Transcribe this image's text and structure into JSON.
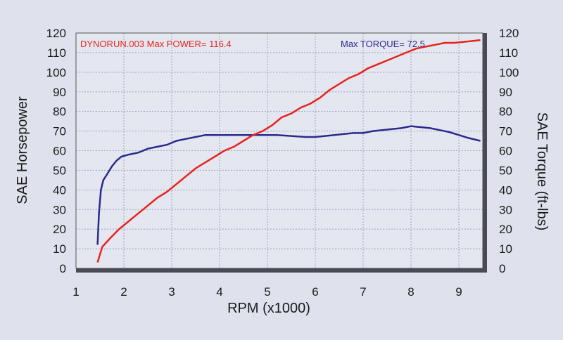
{
  "chart_data": {
    "type": "line",
    "annotations": {
      "power_text": "DYNORUN.003  Max POWER= 116.4",
      "torque_text": "Max TORQUE= 72.5"
    },
    "xlabel": "RPM (x1000)",
    "ylabel_left": "SAE Horsepower",
    "ylabel_right": "SAE Torque (ft-lbs)",
    "xlim": [
      1,
      9.5
    ],
    "ylim": [
      0,
      120
    ],
    "x_ticks": [
      1,
      2,
      3,
      4,
      5,
      6,
      7,
      8,
      9
    ],
    "y_ticks": [
      0,
      10,
      20,
      30,
      40,
      50,
      60,
      70,
      80,
      90,
      100,
      110,
      120
    ],
    "grid": true,
    "colors": {
      "power": "#e8231c",
      "torque": "#2b2a8c",
      "plot_bg": "#e4e7f0",
      "grid": "#9aa6c4"
    },
    "series": [
      {
        "axis": "left",
        "x": [
          1.45,
          1.55,
          1.7,
          1.9,
          2.1,
          2.3,
          2.5,
          2.7,
          2.9,
          3.1,
          3.3,
          3.5,
          3.7,
          3.9,
          4.1,
          4.3,
          4.5,
          4.7,
          4.9,
          5.1,
          5.3,
          5.5,
          5.7,
          5.9,
          6.1,
          6.3,
          6.5,
          6.7,
          6.9,
          7.1,
          7.3,
          7.5,
          7.7,
          7.9,
          8.1,
          8.3,
          8.5,
          8.7,
          8.9,
          9.1,
          9.3,
          9.45
        ],
        "values": [
          3,
          11,
          15,
          20,
          24,
          28,
          32,
          36,
          39,
          43,
          47,
          51,
          54,
          57,
          60,
          62,
          65,
          68,
          70,
          73,
          77,
          79,
          82,
          84,
          87,
          91,
          94,
          97,
          99,
          102,
          104,
          106,
          108,
          110,
          112,
          113,
          114,
          115,
          115,
          115.5,
          116,
          116.4
        ]
      },
      {
        "axis": "right",
        "x": [
          1.45,
          1.48,
          1.52,
          1.57,
          1.65,
          1.75,
          1.85,
          1.95,
          2.1,
          2.3,
          2.5,
          2.7,
          2.9,
          3.1,
          3.3,
          3.5,
          3.7,
          4.0,
          4.3,
          4.6,
          4.9,
          5.2,
          5.5,
          5.8,
          6.0,
          6.2,
          6.4,
          6.6,
          6.8,
          7.0,
          7.2,
          7.4,
          7.6,
          7.8,
          8.0,
          8.2,
          8.4,
          8.6,
          8.8,
          9.0,
          9.2,
          9.45
        ],
        "values": [
          12,
          28,
          40,
          45,
          48,
          52,
          55,
          57,
          58,
          59,
          61,
          62,
          63,
          65,
          66,
          67,
          68,
          68,
          68,
          68,
          68,
          68,
          67.5,
          67,
          67,
          67.5,
          68,
          68.5,
          69,
          69,
          70,
          70.5,
          71,
          71.5,
          72.5,
          72,
          71.5,
          70.5,
          69.5,
          68,
          66.5,
          65
        ]
      }
    ]
  }
}
